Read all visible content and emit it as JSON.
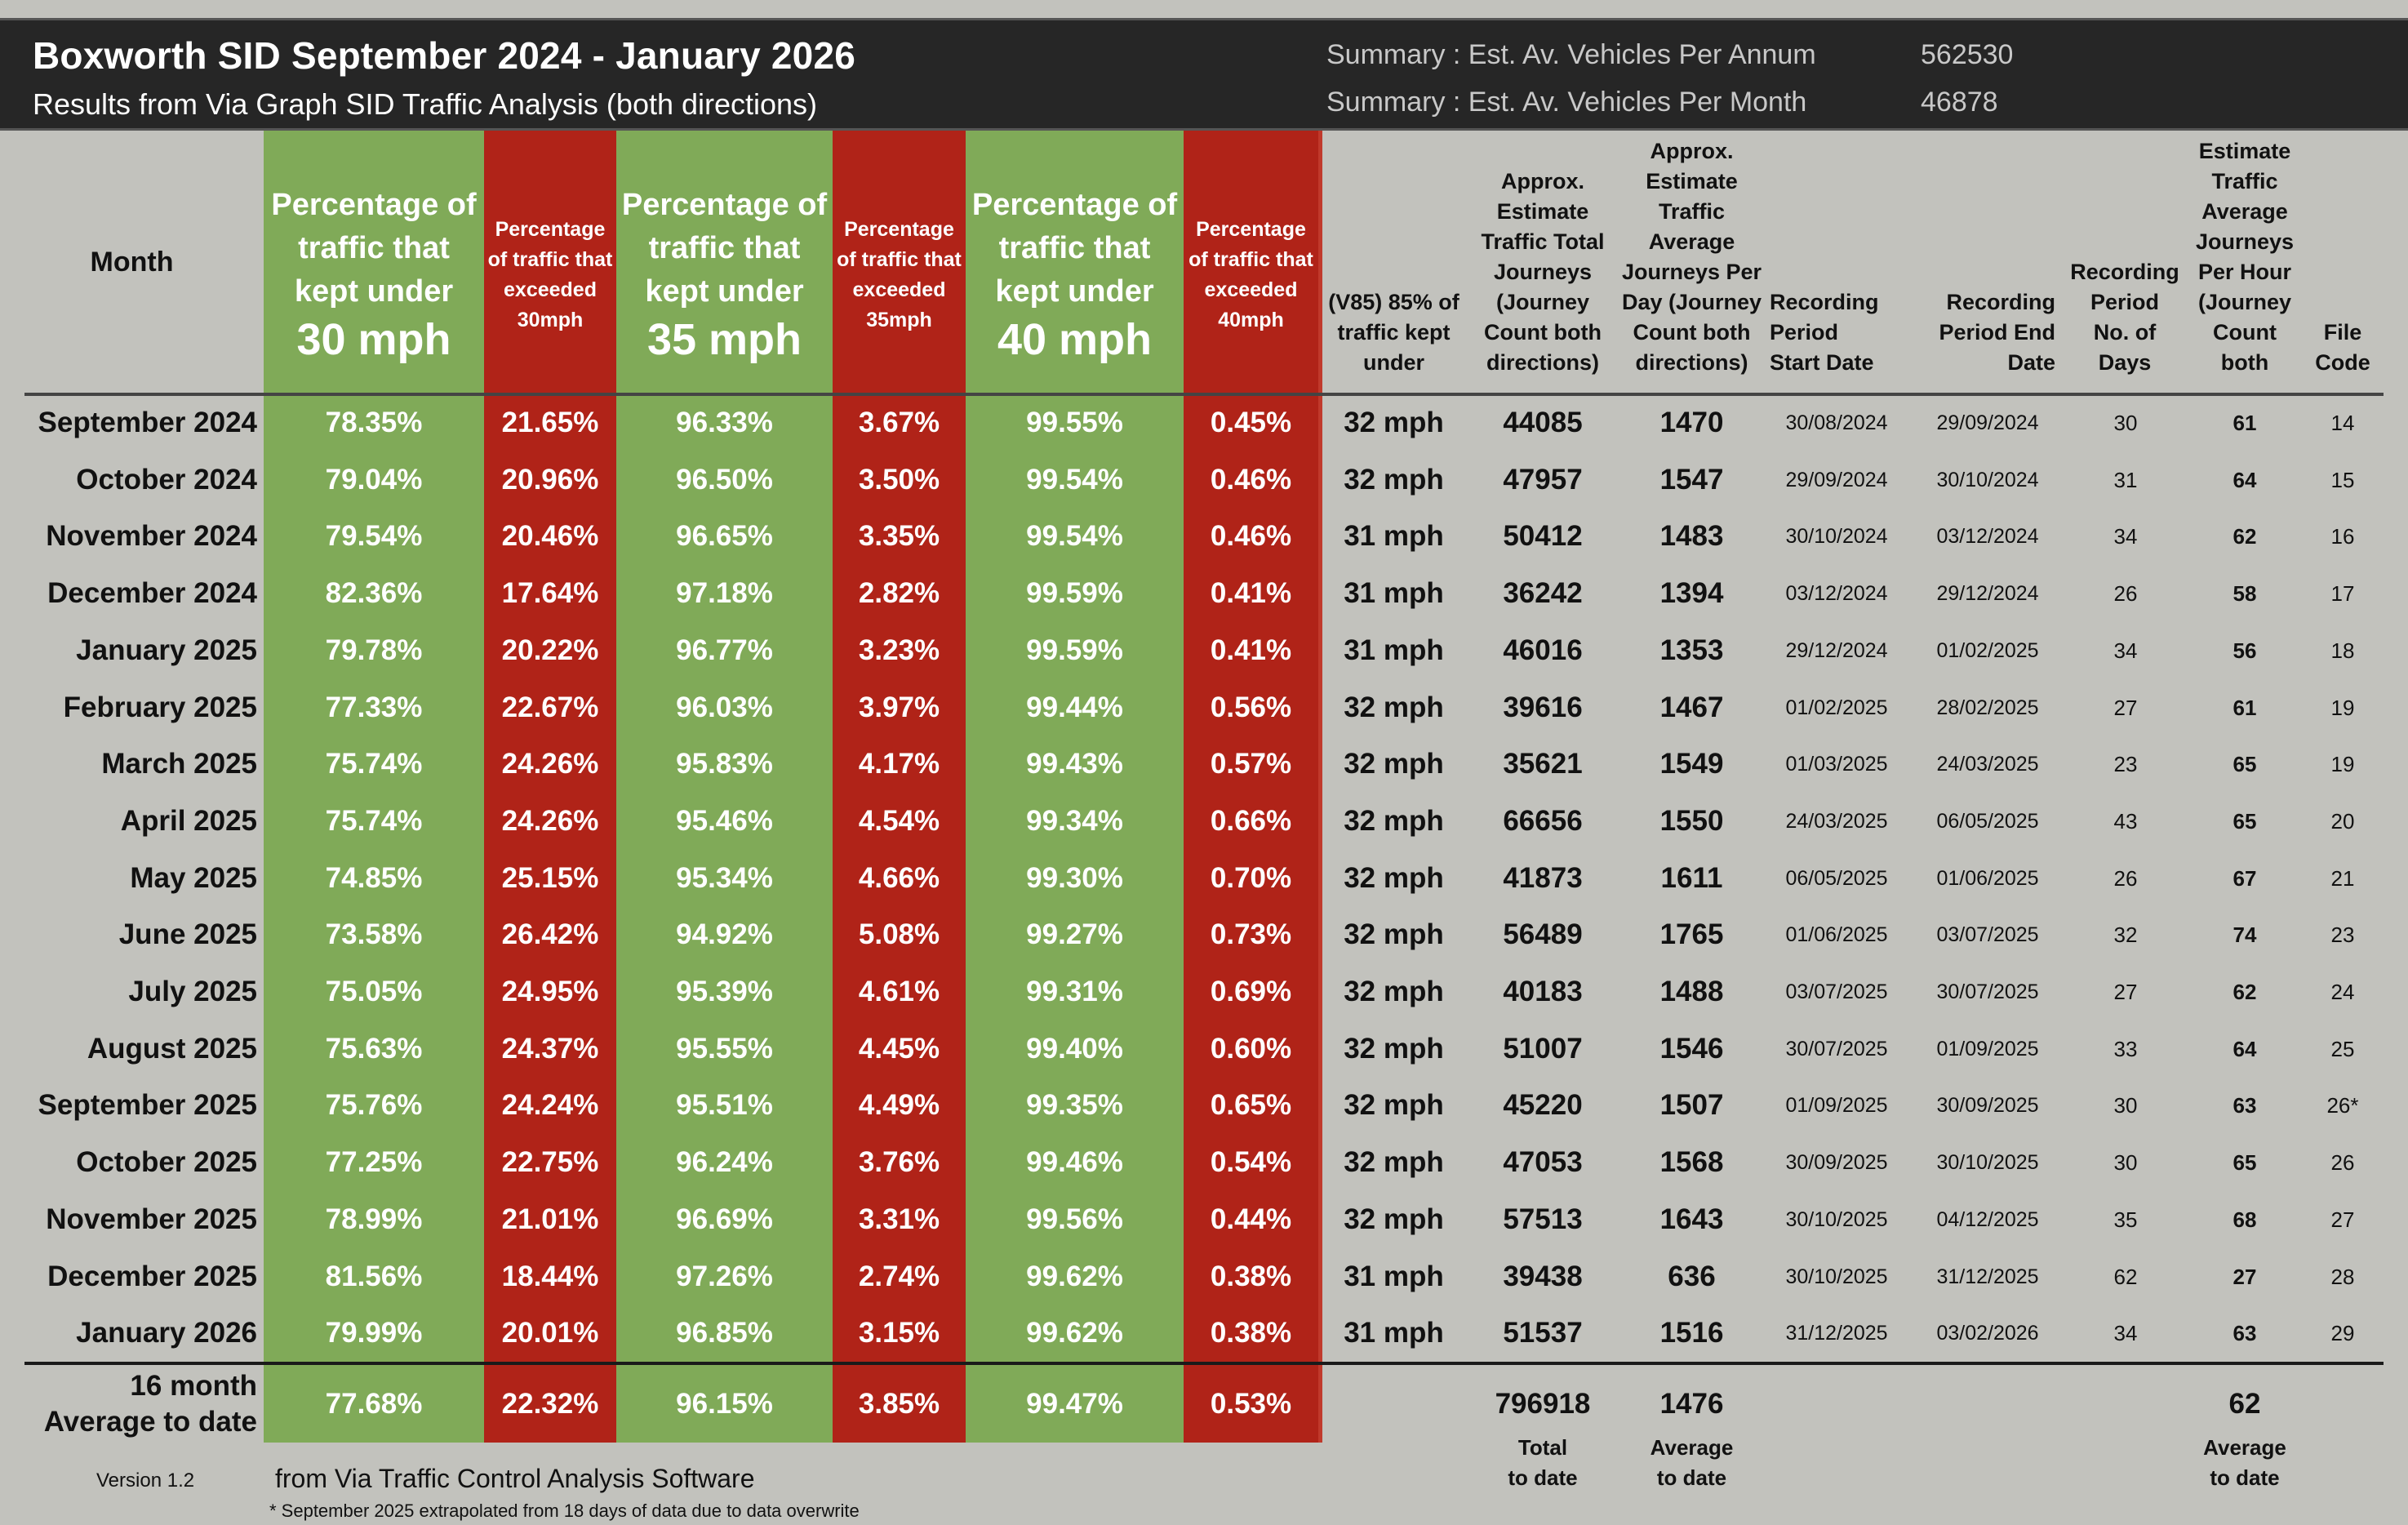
{
  "header": {
    "title": "Boxworth SID September 2024 - January 2026",
    "subtitle": "Results from Via Graph SID Traffic Analysis (both directions)",
    "summary": [
      {
        "label": "Summary : Est. Av. Vehicles Per Annum",
        "value": "562530"
      },
      {
        "label": "Summary : Est. Av. Vehicles Per Month",
        "value": "46878"
      }
    ]
  },
  "colors": {
    "green": "#80aa58",
    "red": "#b02318",
    "header_bg": "#262626",
    "page_bg": "#c2c2bd"
  },
  "columns": {
    "month": "Month",
    "kept30": {
      "text": "Percentage of traffic that kept under",
      "mph": "30 mph"
    },
    "exceeded30": "Percentage of traffic that exceeded 30mph",
    "kept35": {
      "text": "Percentage of traffic that kept under",
      "mph": "35 mph"
    },
    "exceeded35": "Percentage of traffic that exceeded 35mph",
    "kept40": {
      "text": "Percentage of traffic that kept under",
      "mph": "40 mph"
    },
    "exceeded40": "Percentage of traffic that exceeded 40mph",
    "v85": "(V85) 85% of traffic kept under",
    "total": "Approx. Estimate Traffic Total Journeys (Journey Count both directions)",
    "per_day": "Approx. Estimate Traffic Average Journeys Per Day (Journey Count both directions)",
    "start": "Recording Period Start Date",
    "end": "Recording Period End Date",
    "days": "Recording Period No. of Days",
    "per_hour": "Estimate Traffic Average Journeys Per Hour (Journey Count both",
    "file": "File Code"
  },
  "rows": [
    {
      "month": "September 2024",
      "k30": "78.35%",
      "e30": "21.65%",
      "k35": "96.33%",
      "e35": "3.67%",
      "k40": "99.55%",
      "e40": "0.45%",
      "v85": "32 mph",
      "total": "44085",
      "per_day": "1470",
      "start": "30/08/2024",
      "end": "29/09/2024",
      "days": "30",
      "per_hour": "61",
      "file": "14"
    },
    {
      "month": "October 2024",
      "k30": "79.04%",
      "e30": "20.96%",
      "k35": "96.50%",
      "e35": "3.50%",
      "k40": "99.54%",
      "e40": "0.46%",
      "v85": "32 mph",
      "total": "47957",
      "per_day": "1547",
      "start": "29/09/2024",
      "end": "30/10/2024",
      "days": "31",
      "per_hour": "64",
      "file": "15"
    },
    {
      "month": "November 2024",
      "k30": "79.54%",
      "e30": "20.46%",
      "k35": "96.65%",
      "e35": "3.35%",
      "k40": "99.54%",
      "e40": "0.46%",
      "v85": "31 mph",
      "total": "50412",
      "per_day": "1483",
      "start": "30/10/2024",
      "end": "03/12/2024",
      "days": "34",
      "per_hour": "62",
      "file": "16"
    },
    {
      "month": "December 2024",
      "k30": "82.36%",
      "e30": "17.64%",
      "k35": "97.18%",
      "e35": "2.82%",
      "k40": "99.59%",
      "e40": "0.41%",
      "v85": "31 mph",
      "total": "36242",
      "per_day": "1394",
      "start": "03/12/2024",
      "end": "29/12/2024",
      "days": "26",
      "per_hour": "58",
      "file": "17"
    },
    {
      "month": "January 2025",
      "k30": "79.78%",
      "e30": "20.22%",
      "k35": "96.77%",
      "e35": "3.23%",
      "k40": "99.59%",
      "e40": "0.41%",
      "v85": "31 mph",
      "total": "46016",
      "per_day": "1353",
      "start": "29/12/2024",
      "end": "01/02/2025",
      "days": "34",
      "per_hour": "56",
      "file": "18"
    },
    {
      "month": "February 2025",
      "k30": "77.33%",
      "e30": "22.67%",
      "k35": "96.03%",
      "e35": "3.97%",
      "k40": "99.44%",
      "e40": "0.56%",
      "v85": "32 mph",
      "total": "39616",
      "per_day": "1467",
      "start": "01/02/2025",
      "end": "28/02/2025",
      "days": "27",
      "per_hour": "61",
      "file": "19"
    },
    {
      "month": "March 2025",
      "k30": "75.74%",
      "e30": "24.26%",
      "k35": "95.83%",
      "e35": "4.17%",
      "k40": "99.43%",
      "e40": "0.57%",
      "v85": "32 mph",
      "total": "35621",
      "per_day": "1549",
      "start": "01/03/2025",
      "end": "24/03/2025",
      "days": "23",
      "per_hour": "65",
      "file": "19"
    },
    {
      "month": "April 2025",
      "k30": "75.74%",
      "e30": "24.26%",
      "k35": "95.46%",
      "e35": "4.54%",
      "k40": "99.34%",
      "e40": "0.66%",
      "v85": "32 mph",
      "total": "66656",
      "per_day": "1550",
      "start": "24/03/2025",
      "end": "06/05/2025",
      "days": "43",
      "per_hour": "65",
      "file": "20"
    },
    {
      "month": "May 2025",
      "k30": "74.85%",
      "e30": "25.15%",
      "k35": "95.34%",
      "e35": "4.66%",
      "k40": "99.30%",
      "e40": "0.70%",
      "v85": "32 mph",
      "total": "41873",
      "per_day": "1611",
      "start": "06/05/2025",
      "end": "01/06/2025",
      "days": "26",
      "per_hour": "67",
      "file": "21"
    },
    {
      "month": "June 2025",
      "k30": "73.58%",
      "e30": "26.42%",
      "k35": "94.92%",
      "e35": "5.08%",
      "k40": "99.27%",
      "e40": "0.73%",
      "v85": "32 mph",
      "total": "56489",
      "per_day": "1765",
      "start": "01/06/2025",
      "end": "03/07/2025",
      "days": "32",
      "per_hour": "74",
      "file": "23"
    },
    {
      "month": "July 2025",
      "k30": "75.05%",
      "e30": "24.95%",
      "k35": "95.39%",
      "e35": "4.61%",
      "k40": "99.31%",
      "e40": "0.69%",
      "v85": "32 mph",
      "total": "40183",
      "per_day": "1488",
      "start": "03/07/2025",
      "end": "30/07/2025",
      "days": "27",
      "per_hour": "62",
      "file": "24"
    },
    {
      "month": "August 2025",
      "k30": "75.63%",
      "e30": "24.37%",
      "k35": "95.55%",
      "e35": "4.45%",
      "k40": "99.40%",
      "e40": "0.60%",
      "v85": "32 mph",
      "total": "51007",
      "per_day": "1546",
      "start": "30/07/2025",
      "end": "01/09/2025",
      "days": "33",
      "per_hour": "64",
      "file": "25"
    },
    {
      "month": "September 2025",
      "k30": "75.76%",
      "e30": "24.24%",
      "k35": "95.51%",
      "e35": "4.49%",
      "k40": "99.35%",
      "e40": "0.65%",
      "v85": "32 mph",
      "total": "45220",
      "per_day": "1507",
      "start": "01/09/2025",
      "end": "30/09/2025",
      "days": "30",
      "per_hour": "63",
      "file": "26*"
    },
    {
      "month": "October 2025",
      "k30": "77.25%",
      "e30": "22.75%",
      "k35": "96.24%",
      "e35": "3.76%",
      "k40": "99.46%",
      "e40": "0.54%",
      "v85": "32 mph",
      "total": "47053",
      "per_day": "1568",
      "start": "30/09/2025",
      "end": "30/10/2025",
      "days": "30",
      "per_hour": "65",
      "file": "26"
    },
    {
      "month": "November 2025",
      "k30": "78.99%",
      "e30": "21.01%",
      "k35": "96.69%",
      "e35": "3.31%",
      "k40": "99.56%",
      "e40": "0.44%",
      "v85": "32 mph",
      "total": "57513",
      "per_day": "1643",
      "start": "30/10/2025",
      "end": "04/12/2025",
      "days": "35",
      "per_hour": "68",
      "file": "27"
    },
    {
      "month": "December 2025",
      "k30": "81.56%",
      "e30": "18.44%",
      "k35": "97.26%",
      "e35": "2.74%",
      "k40": "99.62%",
      "e40": "0.38%",
      "v85": "31 mph",
      "total": "39438",
      "per_day": "636",
      "start": "30/10/2025",
      "end": "31/12/2025",
      "days": "62",
      "per_hour": "27",
      "file": "28"
    },
    {
      "month": "January 2026",
      "k30": "79.99%",
      "e30": "20.01%",
      "k35": "96.85%",
      "e35": "3.15%",
      "k40": "99.62%",
      "e40": "0.38%",
      "v85": "31 mph",
      "total": "51537",
      "per_day": "1516",
      "start": "31/12/2025",
      "end": "03/02/2026",
      "days": "34",
      "per_hour": "63",
      "file": "29"
    }
  ],
  "average": {
    "label_line1": "16 month",
    "label_line2": "Average to date",
    "k30": "77.68%",
    "e30": "22.32%",
    "k35": "96.15%",
    "e35": "3.85%",
    "k40": "99.47%",
    "e40": "0.53%",
    "total": "796918",
    "per_day": "1476",
    "per_hour": "62"
  },
  "footer": {
    "total_label": [
      "Total",
      "to date"
    ],
    "per_day_label": [
      "Average",
      "to date"
    ],
    "per_hour_label": [
      "Average",
      "to date"
    ],
    "version": "Version 1.2",
    "source": "from Via Traffic Control Analysis Software",
    "note": "* September 2025 extrapolated from 18 days of data due to data overwrite"
  }
}
